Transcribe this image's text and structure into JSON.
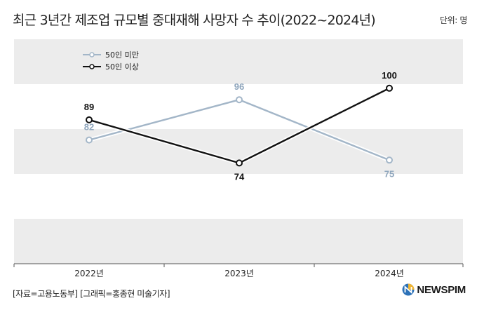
{
  "title": "최근 3년간 제조업 규모별 중대재해 사망자 수 추이(2022~2024년)",
  "unit_label": "단위: 명",
  "source_label": "[자료=고용노동부] [그래픽=홍종현 미술기자]",
  "logo": {
    "text": "NEWSPIM",
    "icon": "newspim-logo-icon"
  },
  "colors": {
    "band": "#ececec",
    "under50": "#a3b6c8",
    "over50": "#111111"
  },
  "chart_data": {
    "type": "line",
    "categories": [
      "2022년",
      "2023년",
      "2024년"
    ],
    "series": [
      {
        "name": "50인 미만",
        "values": [
          82,
          96,
          75
        ],
        "color": "#a3b6c8"
      },
      {
        "name": "50인 이상",
        "values": [
          89,
          74,
          100
        ],
        "color": "#111111"
      }
    ],
    "legend_position": "top-left",
    "grid": "alternating horizontal bands",
    "data_labels": true
  }
}
